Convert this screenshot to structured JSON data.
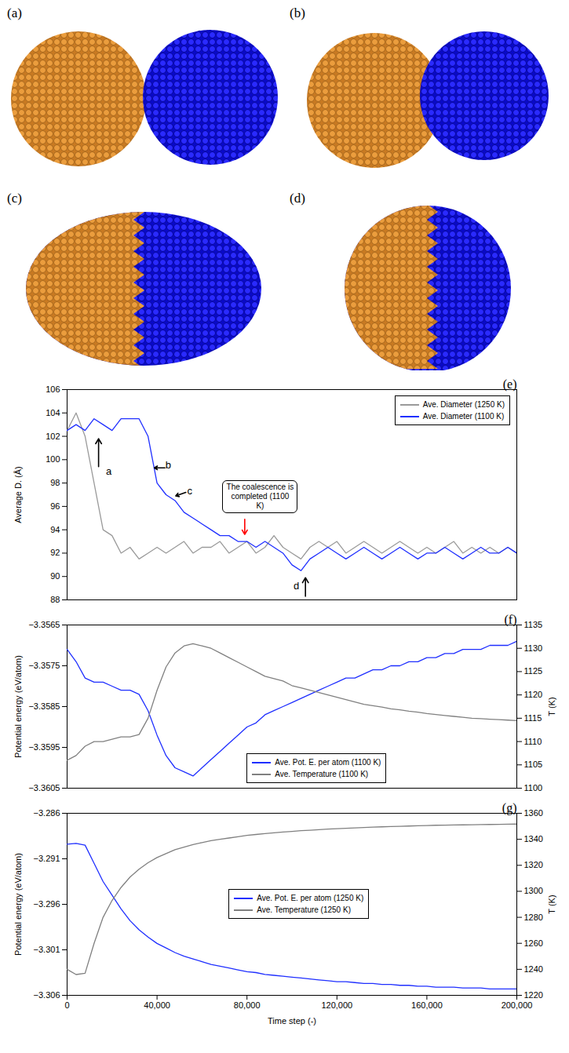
{
  "images": [
    {
      "label": "(a)"
    },
    {
      "label": "(b)"
    },
    {
      "label": "(c)"
    },
    {
      "label": "(d)"
    }
  ],
  "chart_data": [
    {
      "type": "line",
      "title": "(e)",
      "y_label": "Average D. (Å)",
      "x": [
        0,
        4000,
        8000,
        12000,
        16000,
        20000,
        24000,
        28000,
        32000,
        36000,
        40000,
        44000,
        48000,
        52000,
        56000,
        60000,
        64000,
        68000,
        72000,
        76000,
        80000,
        84000,
        88000,
        92000,
        96000,
        100000,
        104000,
        108000,
        112000,
        116000,
        120000,
        124000,
        128000,
        132000,
        136000,
        140000,
        144000,
        148000,
        152000,
        156000,
        160000,
        164000,
        168000,
        172000,
        176000,
        180000,
        184000,
        188000,
        192000,
        196000,
        200000
      ],
      "xlim": [
        0,
        200000
      ],
      "ylim": [
        88,
        106
      ],
      "yticks": [
        88,
        90,
        92,
        94,
        96,
        98,
        100,
        102,
        104,
        106
      ],
      "legend": "upper right",
      "series": [
        {
          "name": "Ave. Diameter (1250 K)",
          "color": "#9a9a9a",
          "values": [
            102.5,
            104,
            102,
            98,
            94,
            93.5,
            92,
            92.5,
            91.5,
            92,
            92.5,
            92,
            92.5,
            93,
            92,
            92.5,
            92.5,
            93,
            92,
            92.5,
            93,
            92,
            92.5,
            93.5,
            92.5,
            92,
            91.5,
            92.5,
            93,
            92.5,
            93,
            92,
            92.5,
            93,
            92.5,
            92,
            92.5,
            93,
            92.5,
            92,
            92.5,
            92,
            92.5,
            93,
            92,
            92.5,
            92,
            92.5,
            92,
            92.5,
            92
          ]
        },
        {
          "name": "Ave. Diameter (1100 K)",
          "color": "#1f2fff",
          "values": [
            102.5,
            103,
            102.5,
            103.5,
            103,
            102.5,
            103.5,
            103.5,
            103.5,
            102,
            98,
            97,
            96.5,
            95.5,
            95,
            94.5,
            94,
            93.5,
            93.5,
            93,
            93,
            92.5,
            93,
            92.5,
            92,
            91,
            90.5,
            91.5,
            92,
            92.5,
            92,
            91.5,
            92,
            92.5,
            92,
            91.5,
            92,
            92.5,
            92,
            91.5,
            92,
            92,
            92.5,
            92,
            91.5,
            92,
            92.5,
            92,
            92,
            92.5,
            92
          ]
        }
      ],
      "annotations": [
        {
          "text": "a",
          "x": 18500,
          "y": 99,
          "arrow": {
            "x1": 14000,
            "y1": 99.4,
            "x2": 14000,
            "y2": 101.8
          }
        },
        {
          "text": "b",
          "x": 45000,
          "y": 99.5,
          "arrow": {
            "x1": 43500,
            "y1": 99.3,
            "x2": 38800,
            "y2": 99.3
          }
        },
        {
          "text": "c",
          "x": 54500,
          "y": 97.3,
          "arrow": {
            "x1": 52800,
            "y1": 97.2,
            "x2": 48300,
            "y2": 96.9
          }
        },
        {
          "text": "The coalescence is completed (1100 K)",
          "x": 86000,
          "y": 96.8,
          "color": "#ff0000",
          "arrow": {
            "x1": 79000,
            "y1": 94.9,
            "x2": 79000,
            "y2": 93.6
          }
        },
        {
          "text": "d",
          "x": 102000,
          "y": 89.2,
          "arrow": {
            "x1": 106000,
            "y1": 88.3,
            "x2": 106000,
            "y2": 89.9
          }
        }
      ]
    },
    {
      "type": "line",
      "title": "(f)",
      "y_label": "Potential energy (eV/atom)",
      "y2_label": "T (K)",
      "x": [
        0,
        4000,
        8000,
        12000,
        16000,
        20000,
        24000,
        28000,
        32000,
        36000,
        40000,
        44000,
        48000,
        52000,
        56000,
        60000,
        64000,
        68000,
        72000,
        76000,
        80000,
        84000,
        88000,
        92000,
        96000,
        100000,
        104000,
        108000,
        112000,
        116000,
        120000,
        124000,
        128000,
        132000,
        136000,
        140000,
        144000,
        148000,
        152000,
        156000,
        160000,
        164000,
        168000,
        172000,
        176000,
        180000,
        184000,
        188000,
        192000,
        196000,
        200000
      ],
      "xlim": [
        0,
        200000
      ],
      "ylim": [
        -3.3605,
        -3.3565
      ],
      "yticks": [
        {
          "value": -3.3605,
          "label": "−3.3605"
        },
        {
          "value": -3.3595,
          "label": "−3.3595"
        },
        {
          "value": -3.3585,
          "label": "−3.3585"
        },
        {
          "value": -3.3575,
          "label": "−3.3575"
        },
        {
          "value": -3.3565,
          "label": "−3.3565"
        }
      ],
      "y2lim": [
        1100,
        1135
      ],
      "y2ticks": [
        1100,
        1105,
        1110,
        1115,
        1120,
        1125,
        1130,
        1135
      ],
      "legend": "lower center",
      "series": [
        {
          "name": "Ave. Pot. E. per atom (1100 K)",
          "color": "#1f2fff",
          "axis": "y",
          "values": [
            -3.3571,
            -3.3574,
            -3.3578,
            -3.3579,
            -3.3579,
            -3.358,
            -3.3581,
            -3.3581,
            -3.3582,
            -3.3586,
            -3.3592,
            -3.3597,
            -3.36,
            -3.3601,
            -3.3602,
            -3.36,
            -3.3598,
            -3.3596,
            -3.3594,
            -3.3592,
            -3.359,
            -3.3589,
            -3.3587,
            -3.3586,
            -3.3585,
            -3.3584,
            -3.3583,
            -3.3582,
            -3.3581,
            -3.358,
            -3.3579,
            -3.3578,
            -3.3578,
            -3.3577,
            -3.3576,
            -3.3576,
            -3.3575,
            -3.3575,
            -3.3574,
            -3.3574,
            -3.3573,
            -3.3573,
            -3.3572,
            -3.3572,
            -3.3571,
            -3.3571,
            -3.3571,
            -3.357,
            -3.357,
            -3.357,
            -3.3569
          ]
        },
        {
          "name": "Ave. Temperature (1100 K)",
          "color": "#808080",
          "axis": "y2",
          "values": [
            1106,
            1107,
            1109,
            1110,
            1110,
            1110.5,
            1111,
            1111,
            1111.5,
            1115,
            1121,
            1126,
            1129,
            1130.5,
            1131,
            1130.5,
            1130,
            1129,
            1128,
            1127,
            1126,
            1125,
            1124,
            1123.5,
            1123,
            1122,
            1121.5,
            1121,
            1120.5,
            1120,
            1119.5,
            1119,
            1118.5,
            1118,
            1117.7,
            1117.4,
            1117,
            1116.8,
            1116.5,
            1116.3,
            1116,
            1115.8,
            1115.6,
            1115.4,
            1115.2,
            1115,
            1114.9,
            1114.8,
            1114.7,
            1114.6,
            1114.5
          ]
        }
      ]
    },
    {
      "type": "line",
      "title": "(g)",
      "x_label": "Time step (-)",
      "y_label": "Potential energy (eV/atom)",
      "y2_label": "T (K)",
      "x": [
        0,
        4000,
        8000,
        12000,
        16000,
        20000,
        24000,
        28000,
        32000,
        36000,
        40000,
        44000,
        48000,
        52000,
        56000,
        60000,
        64000,
        68000,
        72000,
        76000,
        80000,
        84000,
        88000,
        92000,
        96000,
        100000,
        104000,
        108000,
        112000,
        116000,
        120000,
        124000,
        128000,
        132000,
        136000,
        140000,
        144000,
        148000,
        152000,
        156000,
        160000,
        164000,
        168000,
        172000,
        176000,
        180000,
        184000,
        188000,
        192000,
        196000,
        200000
      ],
      "xlim": [
        0,
        200000
      ],
      "xticks": [
        0,
        {
          "value": 40000,
          "label": "40,000"
        },
        {
          "value": 80000,
          "label": "80,000"
        },
        {
          "value": 120000,
          "label": "120,000"
        },
        {
          "value": 160000,
          "label": "160,000"
        },
        {
          "value": 200000,
          "label": "200,000"
        }
      ],
      "ylim": [
        -3.306,
        -3.286
      ],
      "yticks": [
        {
          "value": -3.306,
          "label": "−3.306"
        },
        {
          "value": -3.301,
          "label": "−3.301"
        },
        {
          "value": -3.296,
          "label": "−3.296"
        },
        {
          "value": -3.291,
          "label": "−3.291"
        },
        {
          "value": -3.286,
          "label": "−3.286"
        }
      ],
      "y2lim": [
        1220,
        1360
      ],
      "y2ticks": [
        1220,
        1240,
        1260,
        1280,
        1300,
        1320,
        1340,
        1360
      ],
      "legend": "center",
      "series": [
        {
          "name": "Ave. Pot. E. per atom (1250 K)",
          "color": "#1f2fff",
          "axis": "y",
          "values": [
            -3.2894,
            -3.2893,
            -3.2895,
            -3.2915,
            -3.2935,
            -3.295,
            -3.2965,
            -3.2978,
            -3.2988,
            -3.2996,
            -3.3003,
            -3.3008,
            -3.3013,
            -3.3017,
            -3.302,
            -3.3023,
            -3.3026,
            -3.3028,
            -3.303,
            -3.3032,
            -3.3034,
            -3.3035,
            -3.3037,
            -3.3038,
            -3.3039,
            -3.304,
            -3.3041,
            -3.3042,
            -3.3043,
            -3.3044,
            -3.3045,
            -3.3045,
            -3.3046,
            -3.3047,
            -3.3047,
            -3.3048,
            -3.3048,
            -3.3049,
            -3.3049,
            -3.305,
            -3.305,
            -3.3051,
            -3.3051,
            -3.3051,
            -3.3052,
            -3.3052,
            -3.3052,
            -3.3053,
            -3.3053,
            -3.3053,
            -3.3053
          ]
        },
        {
          "name": "Ave. Temperature (1250 K)",
          "color": "#808080",
          "axis": "y2",
          "values": [
            1240,
            1236,
            1237,
            1260,
            1280,
            1293,
            1303,
            1311,
            1317,
            1322,
            1326,
            1329,
            1332,
            1334,
            1336,
            1337.5,
            1339,
            1340,
            1341,
            1342,
            1343,
            1343.7,
            1344.4,
            1345,
            1345.6,
            1346.1,
            1346.6,
            1347,
            1347.4,
            1347.8,
            1348.2,
            1348.5,
            1348.8,
            1349.1,
            1349.4,
            1349.6,
            1349.8,
            1350,
            1350.2,
            1350.4,
            1350.6,
            1350.8,
            1350.9,
            1351,
            1351.1,
            1351.2,
            1351.3,
            1351.4,
            1351.5,
            1351.6,
            1351.7
          ]
        }
      ]
    }
  ]
}
